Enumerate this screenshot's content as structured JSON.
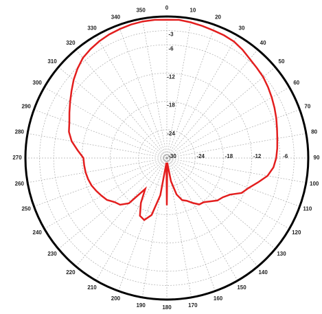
{
  "chart_data": {
    "type": "polar",
    "rlim": [
      -30,
      0
    ],
    "rticks": [
      -30,
      -24,
      -18,
      -12,
      -6,
      -3
    ],
    "thetaticks": [
      0,
      10,
      20,
      30,
      40,
      50,
      60,
      70,
      80,
      90,
      100,
      110,
      120,
      130,
      140,
      150,
      160,
      170,
      180,
      190,
      200,
      210,
      220,
      230,
      240,
      250,
      260,
      270,
      280,
      290,
      300,
      310,
      320,
      330,
      340,
      350
    ],
    "theta": [
      0,
      5,
      10,
      15,
      20,
      25,
      30,
      35,
      40,
      45,
      50,
      55,
      60,
      65,
      70,
      75,
      80,
      85,
      90,
      95,
      100,
      105,
      110,
      115,
      120,
      125,
      130,
      135,
      140,
      145,
      150,
      155,
      160,
      165,
      170,
      175,
      180,
      185,
      190,
      195,
      200,
      205,
      210,
      215,
      220,
      225,
      230,
      235,
      240,
      245,
      250,
      255,
      260,
      265,
      270,
      275,
      280,
      285,
      290,
      295,
      300,
      305,
      310,
      315,
      320,
      325,
      330,
      335,
      340,
      345,
      350,
      355
    ],
    "series": [
      {
        "color": "#e31e1e",
        "values": [
          -0.7,
          -0.6,
          -0.8,
          -1.0,
          -1.2,
          -1.3,
          -1.5,
          -2.0,
          -2.6,
          -3.0,
          -3.3,
          -3.8,
          -4.3,
          -4.8,
          -5.3,
          -5.8,
          -6.2,
          -6.5,
          -6.8,
          -7.3,
          -8.3,
          -10,
          -11.5,
          -12.5,
          -14.5,
          -15.5,
          -16,
          -17,
          -17.8,
          -18,
          -19,
          -20,
          -20.5,
          -22,
          -25,
          -29,
          -20,
          -29,
          -22,
          -17.5,
          -16,
          -16.5,
          -19,
          -22,
          -17.5,
          -16,
          -15.5,
          -14.5,
          -14,
          -13.5,
          -13,
          -12.7,
          -12.5,
          -12.4,
          -12.3,
          -11,
          -9.5,
          -8.5,
          -8,
          -7.2,
          -6.3,
          -5.3,
          -4.2,
          -3.2,
          -2.3,
          -1.8,
          -1.4,
          -1.1,
          -0.9,
          -0.7,
          -0.6,
          -0.6
        ]
      }
    ],
    "grid": true
  }
}
